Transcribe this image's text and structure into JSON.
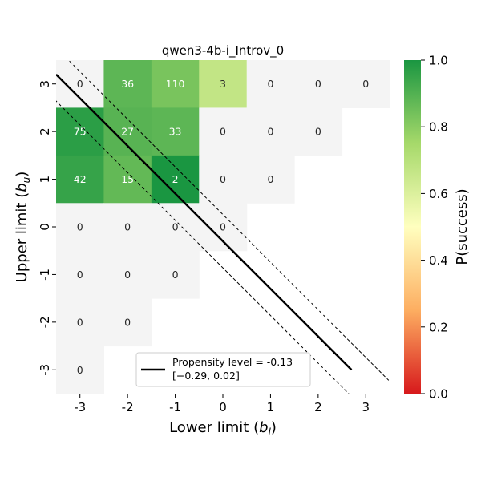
{
  "chart_data": {
    "type": "heatmap",
    "title": "qwen3-4b-i_Introv_0",
    "xlabel": "Lower limit",
    "xlabel_sym": "b",
    "xlabel_sub": "l",
    "ylabel": "Upper limit",
    "ylabel_sym": "b",
    "ylabel_sub": "u",
    "x_categories": [
      "-3",
      "-2",
      "-1",
      "0",
      "1",
      "2",
      "3"
    ],
    "y_categories": [
      "3",
      "2",
      "1",
      "0",
      "-1",
      "-2",
      "-3"
    ],
    "cells": [
      {
        "x": "-3",
        "y": "3",
        "count": 0,
        "p": null
      },
      {
        "x": "-2",
        "y": "3",
        "count": 36,
        "p": 0.88
      },
      {
        "x": "-1",
        "y": "3",
        "count": 110,
        "p": 0.83
      },
      {
        "x": "0",
        "y": "3",
        "count": 3,
        "p": 0.67
      },
      {
        "x": "1",
        "y": "3",
        "count": 0,
        "p": null
      },
      {
        "x": "2",
        "y": "3",
        "count": 0,
        "p": null
      },
      {
        "x": "3",
        "y": "3",
        "count": 0,
        "p": null
      },
      {
        "x": "-3",
        "y": "2",
        "count": 75,
        "p": 0.97
      },
      {
        "x": "-2",
        "y": "2",
        "count": 27,
        "p": 0.89
      },
      {
        "x": "-1",
        "y": "2",
        "count": 33,
        "p": 0.88
      },
      {
        "x": "0",
        "y": "2",
        "count": 0,
        "p": null
      },
      {
        "x": "1",
        "y": "2",
        "count": 0,
        "p": null
      },
      {
        "x": "2",
        "y": "2",
        "count": 0,
        "p": null
      },
      {
        "x": "-3",
        "y": "1",
        "count": 42,
        "p": 0.95
      },
      {
        "x": "-2",
        "y": "1",
        "count": 15,
        "p": 0.87
      },
      {
        "x": "-1",
        "y": "1",
        "count": 2,
        "p": 1.0
      },
      {
        "x": "0",
        "y": "1",
        "count": 0,
        "p": null
      },
      {
        "x": "1",
        "y": "1",
        "count": 0,
        "p": null
      },
      {
        "x": "-3",
        "y": "0",
        "count": 0,
        "p": null
      },
      {
        "x": "-2",
        "y": "0",
        "count": 0,
        "p": null
      },
      {
        "x": "-1",
        "y": "0",
        "count": 0,
        "p": null
      },
      {
        "x": "0",
        "y": "0",
        "count": 0,
        "p": null
      },
      {
        "x": "-3",
        "y": "-1",
        "count": 0,
        "p": null
      },
      {
        "x": "-2",
        "y": "-1",
        "count": 0,
        "p": null
      },
      {
        "x": "-1",
        "y": "-1",
        "count": 0,
        "p": null
      },
      {
        "x": "-3",
        "y": "-2",
        "count": 0,
        "p": null
      },
      {
        "x": "-2",
        "y": "-2",
        "count": 0,
        "p": null
      },
      {
        "x": "-3",
        "y": "-3",
        "count": 0,
        "p": null
      }
    ],
    "propensity_line": {
      "start": [
        -3.5,
        3.2
      ],
      "end": [
        2.7,
        -3.0
      ],
      "ci_offset": 0.28,
      "color": "#000000",
      "style": "solid"
    },
    "ci_lines_style": "dashed",
    "legend": {
      "label": "Propensity level = -0.13",
      "ci_text": "[−0.29, 0.02]",
      "position": "lower center"
    },
    "colorbar": {
      "label": "P(success)",
      "ticks": [
        "0.0",
        "0.2",
        "0.4",
        "0.6",
        "0.8",
        "1.0"
      ],
      "range": [
        0,
        1
      ],
      "colors": [
        "#d7191c",
        "#fdae61",
        "#ffffbf",
        "#a6d96a",
        "#1a9641"
      ]
    },
    "empty_color": "#f4f4f4",
    "grid": false
  }
}
